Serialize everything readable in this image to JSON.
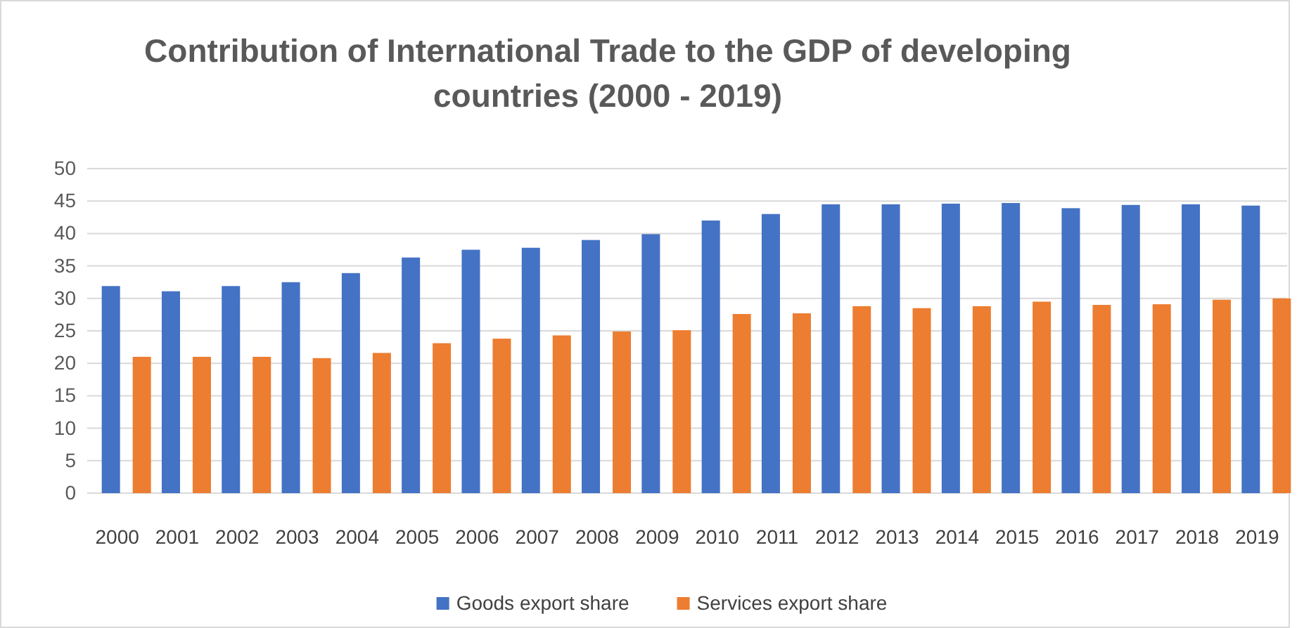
{
  "chart_data": {
    "type": "bar",
    "title": "Contribution of International Trade to the GDP of developing countries (2000 - 2019)",
    "categories": [
      "2000",
      "2001",
      "2002",
      "2003",
      "2004",
      "2005",
      "2006",
      "2007",
      "2008",
      "2009",
      "2010",
      "2011",
      "2012",
      "2013",
      "2014",
      "2015",
      "2016",
      "2017",
      "2018",
      "2019"
    ],
    "series": [
      {
        "name": "Goods export share",
        "color": "#4472c4",
        "values": [
          31.9,
          31.1,
          31.9,
          32.5,
          33.9,
          36.3,
          37.5,
          37.8,
          39.0,
          39.9,
          42.0,
          43.0,
          44.5,
          44.5,
          44.6,
          44.7,
          43.9,
          44.4,
          44.5,
          44.3
        ]
      },
      {
        "name": "Services export share",
        "color": "#ed7d31",
        "values": [
          21.0,
          21.0,
          21.0,
          20.8,
          21.6,
          23.1,
          23.8,
          24.3,
          24.9,
          25.1,
          27.6,
          27.7,
          28.8,
          28.5,
          28.8,
          29.5,
          29.0,
          29.1,
          29.8,
          30.0
        ]
      }
    ],
    "ylim": [
      0,
      50
    ],
    "yticks": [
      0,
      5,
      10,
      15,
      20,
      25,
      30,
      35,
      40,
      45,
      50
    ],
    "grid": "y",
    "legend": "bottom"
  }
}
